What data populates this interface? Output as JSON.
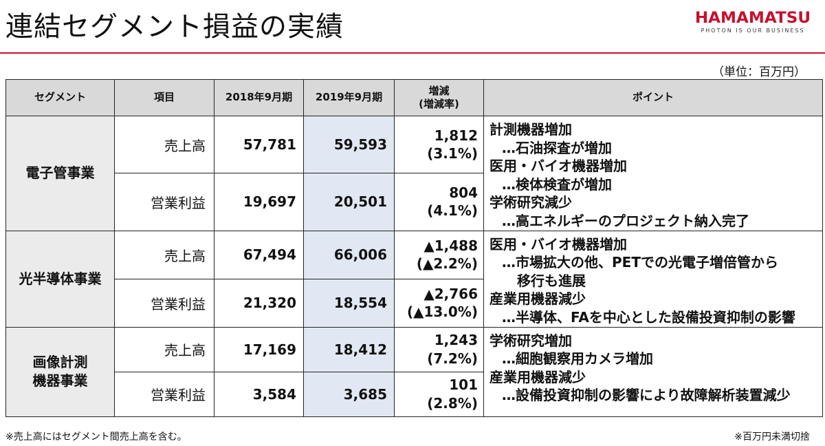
{
  "title": "連結セグメント損益の実績",
  "logo": {
    "main": "HAMAMATSU",
    "sub": "PHOTON IS OUR BUSINESS"
  },
  "unit": "（単位：百万円）",
  "headers": {
    "segment": "セグメント",
    "item": "項目",
    "fy2018": "2018年9月期",
    "fy2019": "2019年9月期",
    "change1": "増減",
    "change2": "(増減率)",
    "points": "ポイント"
  },
  "segments": [
    {
      "name_line1": "電子管事業",
      "name_line2": "",
      "rows": [
        {
          "item": "売上高",
          "fy2018": "57,781",
          "fy2019": "59,593",
          "change": "1,812",
          "rate": "(3.1%)"
        },
        {
          "item": "営業利益",
          "fy2018": "19,697",
          "fy2019": "20,501",
          "change": "804",
          "rate": "(4.1%)"
        }
      ],
      "points": [
        "計測機器増加",
        "…石油探査が増加",
        "医用・バイオ機器増加",
        "…検体検査が増加",
        "学術研究減少",
        "…高エネルギーのプロジェクト納入完了"
      ]
    },
    {
      "name_line1": "光半導体事業",
      "name_line2": "",
      "rows": [
        {
          "item": "売上高",
          "fy2018": "67,494",
          "fy2019": "66,006",
          "change": "▲1,488",
          "rate": "(▲2.2%)"
        },
        {
          "item": "営業利益",
          "fy2018": "21,320",
          "fy2019": "18,554",
          "change": "▲2,766",
          "rate": "(▲13.0%)"
        }
      ],
      "points": [
        "医用・バイオ機器増加",
        "…市場拡大の他、PETでの光電子増倍管から",
        "移行も進展",
        "産業用機器減少",
        "…半導体、FAを中心とした設備投資抑制の影響"
      ]
    },
    {
      "name_line1": "画像計測",
      "name_line2": "機器事業",
      "rows": [
        {
          "item": "売上高",
          "fy2018": "17,169",
          "fy2019": "18,412",
          "change": "1,243",
          "rate": "(7.2%)"
        },
        {
          "item": "営業利益",
          "fy2018": "3,584",
          "fy2019": "3,685",
          "change": "101",
          "rate": "(2.8%)"
        }
      ],
      "points": [
        "学術研究増加",
        "…細胞観察用カメラ増加",
        "産業用機器減少",
        "…設備投資抑制の影響により故障解析装置減少"
      ]
    }
  ],
  "notes": {
    "left": "※売上高にはセグメント間売上高を含む。",
    "right": "※百万円未満切捨"
  }
}
